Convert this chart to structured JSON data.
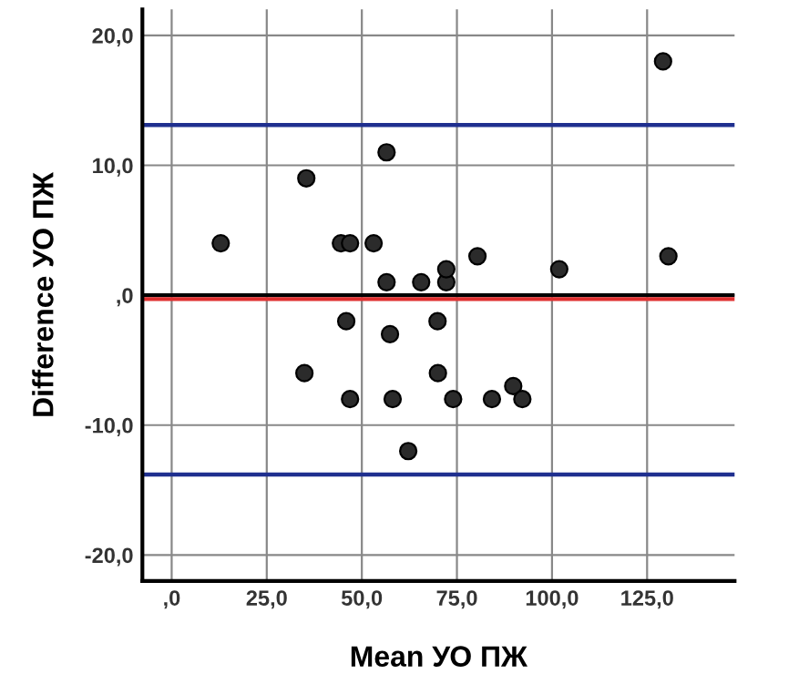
{
  "chart_data": {
    "type": "scatter",
    "xlabel": "Mean УО ПЖ",
    "ylabel": "Difference УО ПЖ",
    "series": [
      {
        "color": "#2b2b2b",
        "x": [
          12.9,
          35.4,
          44.5,
          46.9,
          53.1,
          56.5,
          56.5,
          65.6,
          72.2,
          72.2,
          80.4,
          101.9,
          129.2,
          130.6,
          45.9,
          69.9,
          57.4,
          34.9,
          70.0,
          46.9,
          58.1,
          74.0,
          84.2,
          89.8,
          92.2,
          62.2
        ],
        "values": [
          4,
          9,
          4,
          4,
          4,
          11,
          1,
          1,
          1,
          2,
          3,
          2,
          18,
          3,
          -2,
          -2,
          -3,
          -6,
          -6,
          -8,
          -8,
          -8,
          -8,
          -7,
          -8,
          -12
        ]
      }
    ],
    "marker": "circle",
    "xlim": [
      -7.7,
      148
    ],
    "ylim": [
      -22,
      22
    ],
    "xticks": [
      {
        "value": 0,
        "label": ",0"
      },
      {
        "value": 25,
        "label": "25,0"
      },
      {
        "value": 50,
        "label": "50,0"
      },
      {
        "value": 75,
        "label": "75,0"
      },
      {
        "value": 100,
        "label": "100,0"
      },
      {
        "value": 125,
        "label": "125,0"
      }
    ],
    "yticks": [
      {
        "value": -20,
        "label": "-20,0"
      },
      {
        "value": -10,
        "label": "-10,0"
      },
      {
        "value": 0,
        "label": ",0"
      },
      {
        "value": 10,
        "label": "10,0"
      },
      {
        "value": 20,
        "label": "20,0"
      }
    ],
    "grid": true,
    "ref_lines": [
      {
        "axis": "y",
        "value": 13.1,
        "color": "#1f2f8f"
      },
      {
        "axis": "y",
        "value": -13.8,
        "color": "#1f2f8f"
      },
      {
        "axis": "y",
        "value": 0,
        "color": "#000000"
      },
      {
        "axis": "y",
        "value": -0.3,
        "color": "#e03030"
      }
    ]
  }
}
